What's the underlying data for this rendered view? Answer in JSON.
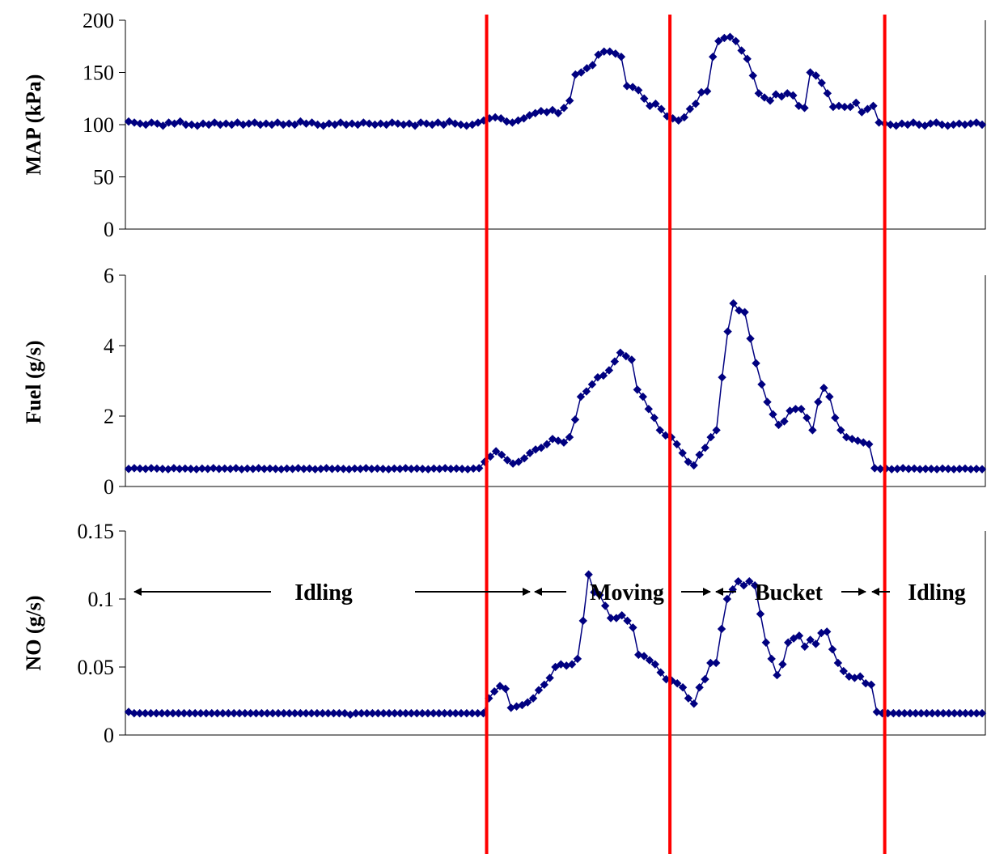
{
  "colors": {
    "series": "#000080",
    "divider": "#ff0000",
    "axis": "#000000"
  },
  "chart_data": [
    {
      "type": "line",
      "ylabel": "MAP (kPa)",
      "ylim": [
        0,
        200
      ],
      "yticks": [
        "0",
        "50",
        "100",
        "150",
        "200"
      ],
      "grid": false,
      "series": [
        {
          "values": [
            103,
            102,
            101,
            100,
            102,
            101,
            99,
            102,
            101,
            103,
            100,
            100,
            99,
            101,
            100,
            102,
            100,
            101,
            100,
            102,
            100,
            101,
            102,
            100,
            101,
            100,
            102,
            100,
            101,
            100,
            103,
            101,
            102,
            100,
            99,
            101,
            100,
            102,
            100,
            101,
            100,
            102,
            101,
            100,
            101,
            100,
            102,
            101,
            100,
            101,
            99,
            102,
            101,
            100,
            102,
            100,
            103,
            101,
            100,
            99,
            100,
            102,
            104,
            106,
            107,
            106,
            103,
            102,
            104,
            106,
            109,
            111,
            113,
            112,
            114,
            111,
            116,
            123,
            148,
            150,
            154,
            157,
            167,
            170,
            170,
            168,
            165,
            137,
            136,
            133,
            125,
            118,
            120,
            115,
            108,
            106,
            104,
            107,
            115,
            120,
            131,
            132,
            165,
            180,
            183,
            184,
            180,
            171,
            163,
            147,
            130,
            126,
            123,
            129,
            127,
            130,
            128,
            118,
            116,
            150,
            147,
            140,
            130,
            117,
            118,
            117,
            117,
            121,
            112,
            115,
            118,
            102,
            101,
            100,
            99,
            101,
            100,
            102,
            100,
            99,
            101,
            102,
            100,
            99,
            100,
            101,
            100,
            101,
            102,
            100
          ]
        }
      ]
    },
    {
      "type": "line",
      "ylabel": "Fuel (g/s)",
      "ylim": [
        0,
        6
      ],
      "yticks": [
        "0",
        "2",
        "4",
        "6"
      ],
      "grid": false,
      "series": [
        {
          "values": [
            0.5,
            0.52,
            0.51,
            0.5,
            0.52,
            0.51,
            0.5,
            0.49,
            0.52,
            0.5,
            0.51,
            0.5,
            0.49,
            0.51,
            0.5,
            0.52,
            0.5,
            0.51,
            0.5,
            0.52,
            0.49,
            0.51,
            0.5,
            0.52,
            0.5,
            0.51,
            0.5,
            0.49,
            0.51,
            0.5,
            0.52,
            0.5,
            0.51,
            0.49,
            0.5,
            0.52,
            0.5,
            0.51,
            0.5,
            0.49,
            0.51,
            0.5,
            0.52,
            0.5,
            0.51,
            0.5,
            0.49,
            0.51,
            0.5,
            0.52,
            0.5,
            0.51,
            0.5,
            0.49,
            0.51,
            0.5,
            0.52,
            0.5,
            0.51,
            0.5,
            0.49,
            0.51,
            0.52,
            0.7,
            0.85,
            1.0,
            0.9,
            0.75,
            0.65,
            0.7,
            0.8,
            0.95,
            1.05,
            1.1,
            1.2,
            1.35,
            1.3,
            1.25,
            1.4,
            1.9,
            2.55,
            2.7,
            2.9,
            3.1,
            3.15,
            3.3,
            3.55,
            3.8,
            3.7,
            3.6,
            2.75,
            2.55,
            2.2,
            1.95,
            1.6,
            1.45,
            1.4,
            1.2,
            0.95,
            0.7,
            0.6,
            0.9,
            1.1,
            1.4,
            1.6,
            3.1,
            4.4,
            5.2,
            5.0,
            4.95,
            4.2,
            3.5,
            2.9,
            2.4,
            2.05,
            1.75,
            1.85,
            2.15,
            2.2,
            2.2,
            1.95,
            1.6,
            2.4,
            2.8,
            2.55,
            1.95,
            1.6,
            1.4,
            1.35,
            1.3,
            1.25,
            1.2,
            0.52,
            0.5,
            0.51,
            0.49,
            0.5,
            0.52,
            0.5,
            0.51,
            0.49,
            0.5,
            0.5,
            0.49,
            0.51,
            0.5,
            0.49,
            0.5,
            0.51,
            0.49,
            0.5,
            0.49
          ]
        }
      ]
    },
    {
      "type": "line",
      "ylabel": "NO (g/s)",
      "ylim": [
        0,
        0.15
      ],
      "yticks": [
        "0",
        "0.05",
        "0.1",
        "0.15"
      ],
      "grid": false,
      "series": [
        {
          "values": [
            0.017,
            0.016,
            0.016,
            0.016,
            0.016,
            0.016,
            0.016,
            0.016,
            0.016,
            0.016,
            0.016,
            0.016,
            0.016,
            0.016,
            0.016,
            0.016,
            0.016,
            0.016,
            0.016,
            0.016,
            0.016,
            0.016,
            0.016,
            0.016,
            0.016,
            0.016,
            0.016,
            0.016,
            0.016,
            0.016,
            0.016,
            0.016,
            0.016,
            0.016,
            0.016,
            0.016,
            0.016,
            0.016,
            0.016,
            0.016,
            0.015,
            0.016,
            0.016,
            0.016,
            0.016,
            0.016,
            0.016,
            0.016,
            0.016,
            0.016,
            0.016,
            0.016,
            0.016,
            0.016,
            0.016,
            0.016,
            0.016,
            0.016,
            0.016,
            0.016,
            0.016,
            0.016,
            0.016,
            0.016,
            0.016,
            0.027,
            0.032,
            0.036,
            0.034,
            0.02,
            0.021,
            0.022,
            0.024,
            0.027,
            0.033,
            0.037,
            0.042,
            0.05,
            0.052,
            0.051,
            0.052,
            0.056,
            0.084,
            0.118,
            0.105,
            0.103,
            0.095,
            0.086,
            0.086,
            0.088,
            0.084,
            0.079,
            0.059,
            0.058,
            0.055,
            0.052,
            0.046,
            0.041,
            0.04,
            0.038,
            0.035,
            0.027,
            0.023,
            0.035,
            0.041,
            0.053,
            0.053,
            0.078,
            0.1,
            0.107,
            0.113,
            0.11,
            0.113,
            0.11,
            0.089,
            0.068,
            0.056,
            0.044,
            0.052,
            0.068,
            0.071,
            0.073,
            0.065,
            0.07,
            0.067,
            0.075,
            0.076,
            0.063,
            0.053,
            0.047,
            0.043,
            0.042,
            0.043,
            0.038,
            0.037,
            0.017,
            0.016,
            0.016,
            0.016,
            0.016,
            0.016,
            0.016,
            0.016,
            0.016,
            0.016,
            0.016,
            0.016,
            0.016,
            0.016,
            0.016,
            0.016,
            0.016,
            0.016,
            0.016,
            0.016
          ]
        }
      ]
    }
  ],
  "phases": [
    {
      "label": "Idling"
    },
    {
      "label": "Moving"
    },
    {
      "label": "Bucket"
    },
    {
      "label": "Idling"
    }
  ],
  "phase_boundaries": [
    62.5,
    94.5,
    132
  ]
}
